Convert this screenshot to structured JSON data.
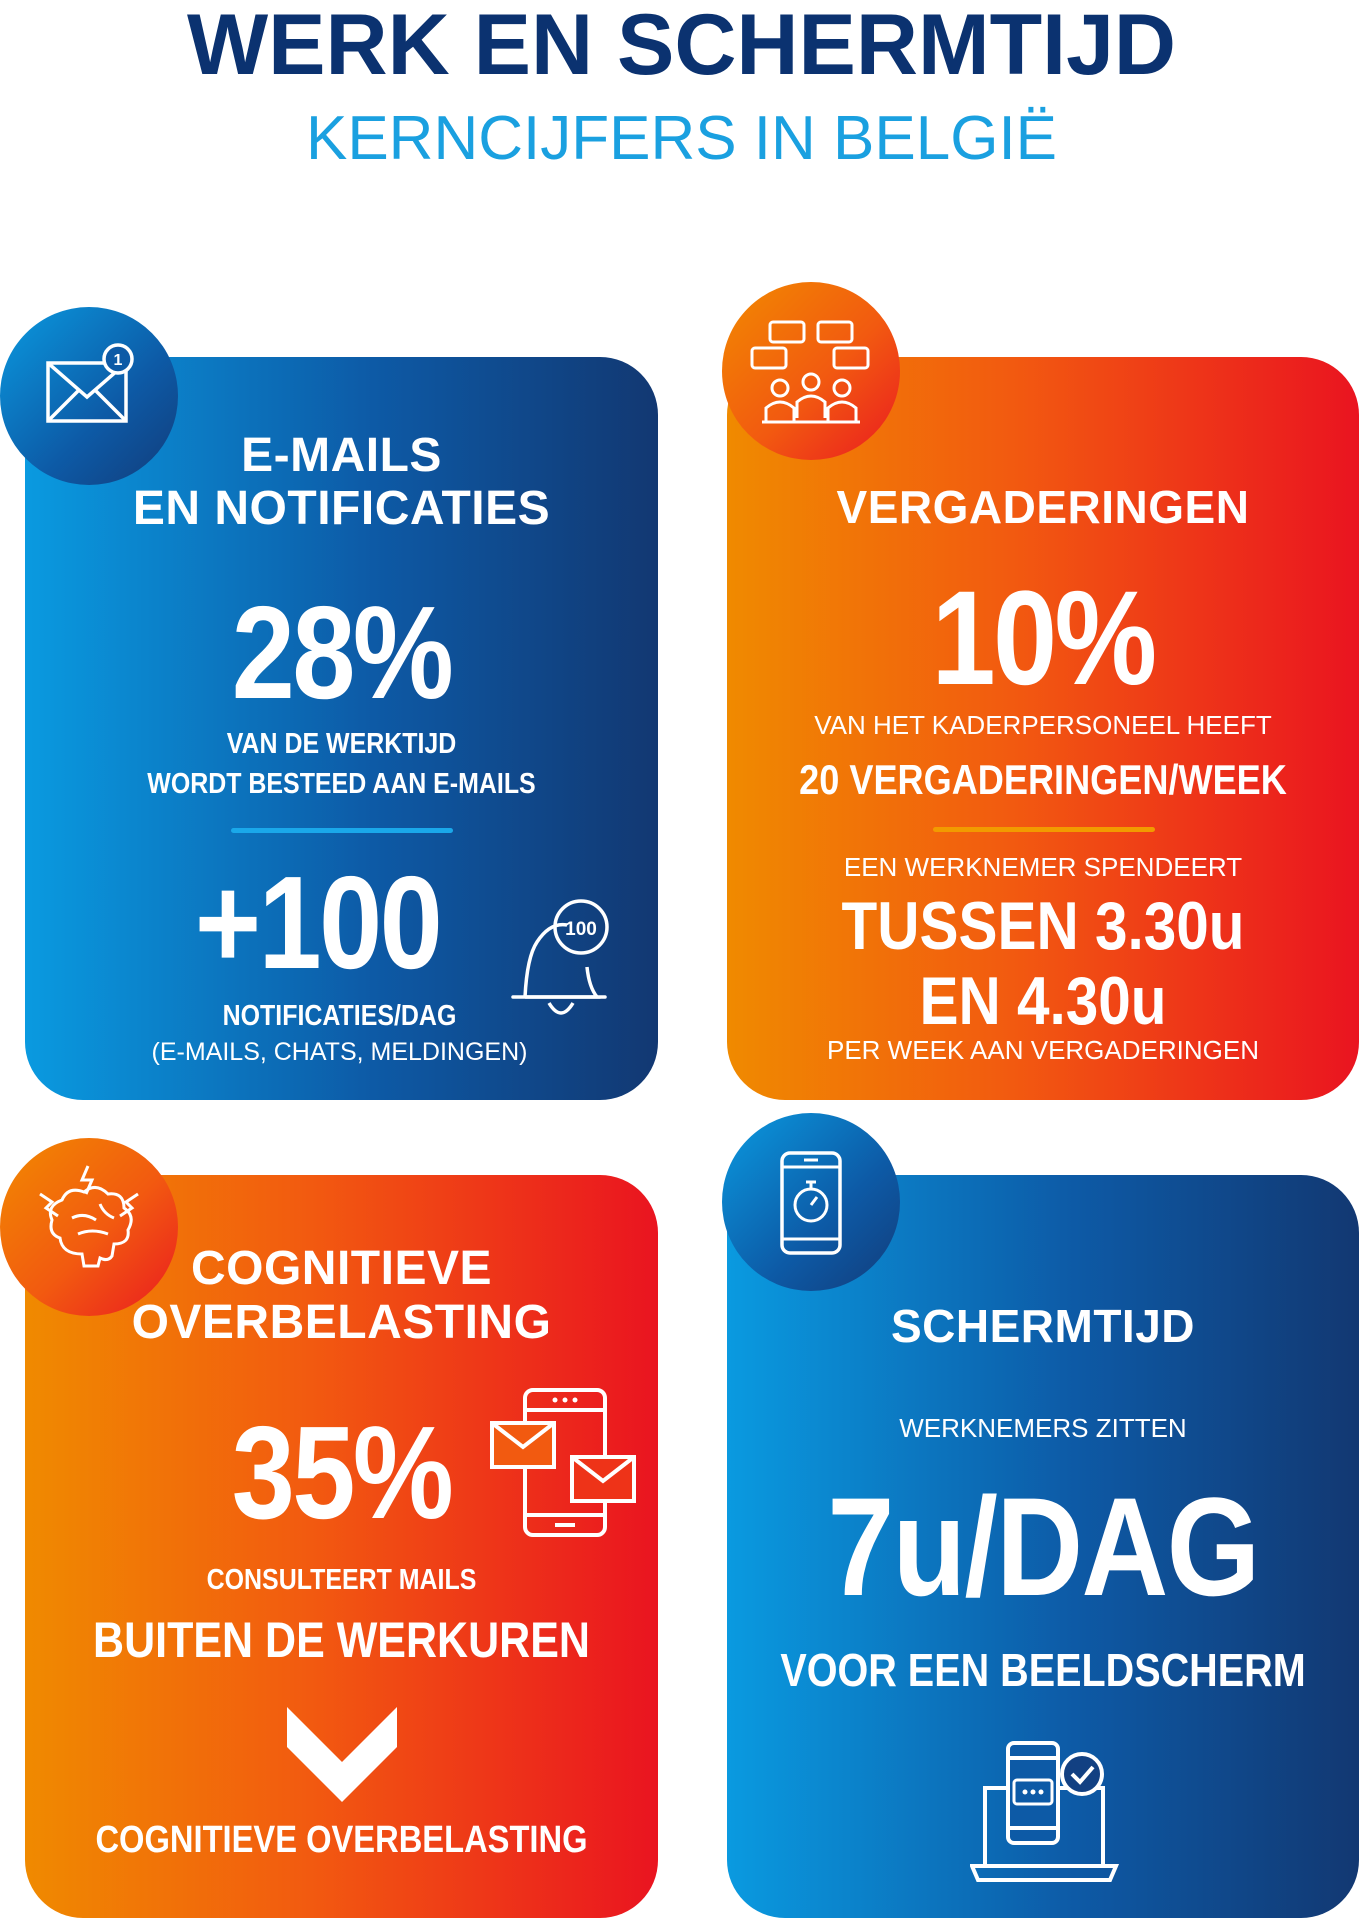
{
  "header": {
    "title": "WERK EN SCHERMTIJD",
    "subtitle": "KERNCIJFERS IN BELGIË"
  },
  "emails": {
    "heading_line1": "E-MAILS",
    "heading_line2": "EN NOTIFICATIES",
    "stat1": "28%",
    "stat1_line1": "VAN DE WERKTIJD",
    "stat1_line2": "WORDT BESTEED AAN E-MAILS",
    "stat2": "+100",
    "stat2_label": "NOTIFICATIES/DAG",
    "stat2_sub": "(E-MAILS, CHATS, MELDINGEN)",
    "envelope_badge": "1",
    "bell_badge": "100"
  },
  "meetings": {
    "heading": "VERGADERINGEN",
    "stat1": "10%",
    "stat1_line1": "VAN HET KADERPERSONEEL HEEFT",
    "stat1_line2": "20 VERGADERINGEN/WEEK",
    "stat2_intro": "EEN WERKNEMER SPENDEERT",
    "stat2_line1": "TUSSEN 3.30u",
    "stat2_line2": "EN 4.30u",
    "stat2_outro": "PER WEEK AAN VERGADERINGEN"
  },
  "cognitive": {
    "heading_line1": "COGNITIEVE",
    "heading_line2": "OVERBELASTING",
    "stat": "35%",
    "line1": "CONSULTEERT MAILS",
    "line2": "BUITEN DE WERKUREN",
    "result": "COGNITIEVE OVERBELASTING"
  },
  "screen": {
    "heading": "SCHERMTIJD",
    "intro": "WERKNEMERS ZITTEN",
    "stat": "7u/DAG",
    "outro": "VOOR EEN BEELDSCHERM"
  },
  "colors": {
    "title": "#0b3270",
    "subtitle": "#1aa0e0",
    "blue_start": "#0a9ae0",
    "blue_end": "#123872",
    "red_start": "#f08a00",
    "red_end": "#ea1420",
    "blue_divider": "#1aa8ea",
    "orange_divider": "#f29a00"
  },
  "icons": [
    "envelope-icon",
    "bell-icon",
    "meeting-icon",
    "brain-icon",
    "devices-mail-icon",
    "chevron-down-icon",
    "smartphone-timer-icon",
    "laptop-check-icon"
  ]
}
